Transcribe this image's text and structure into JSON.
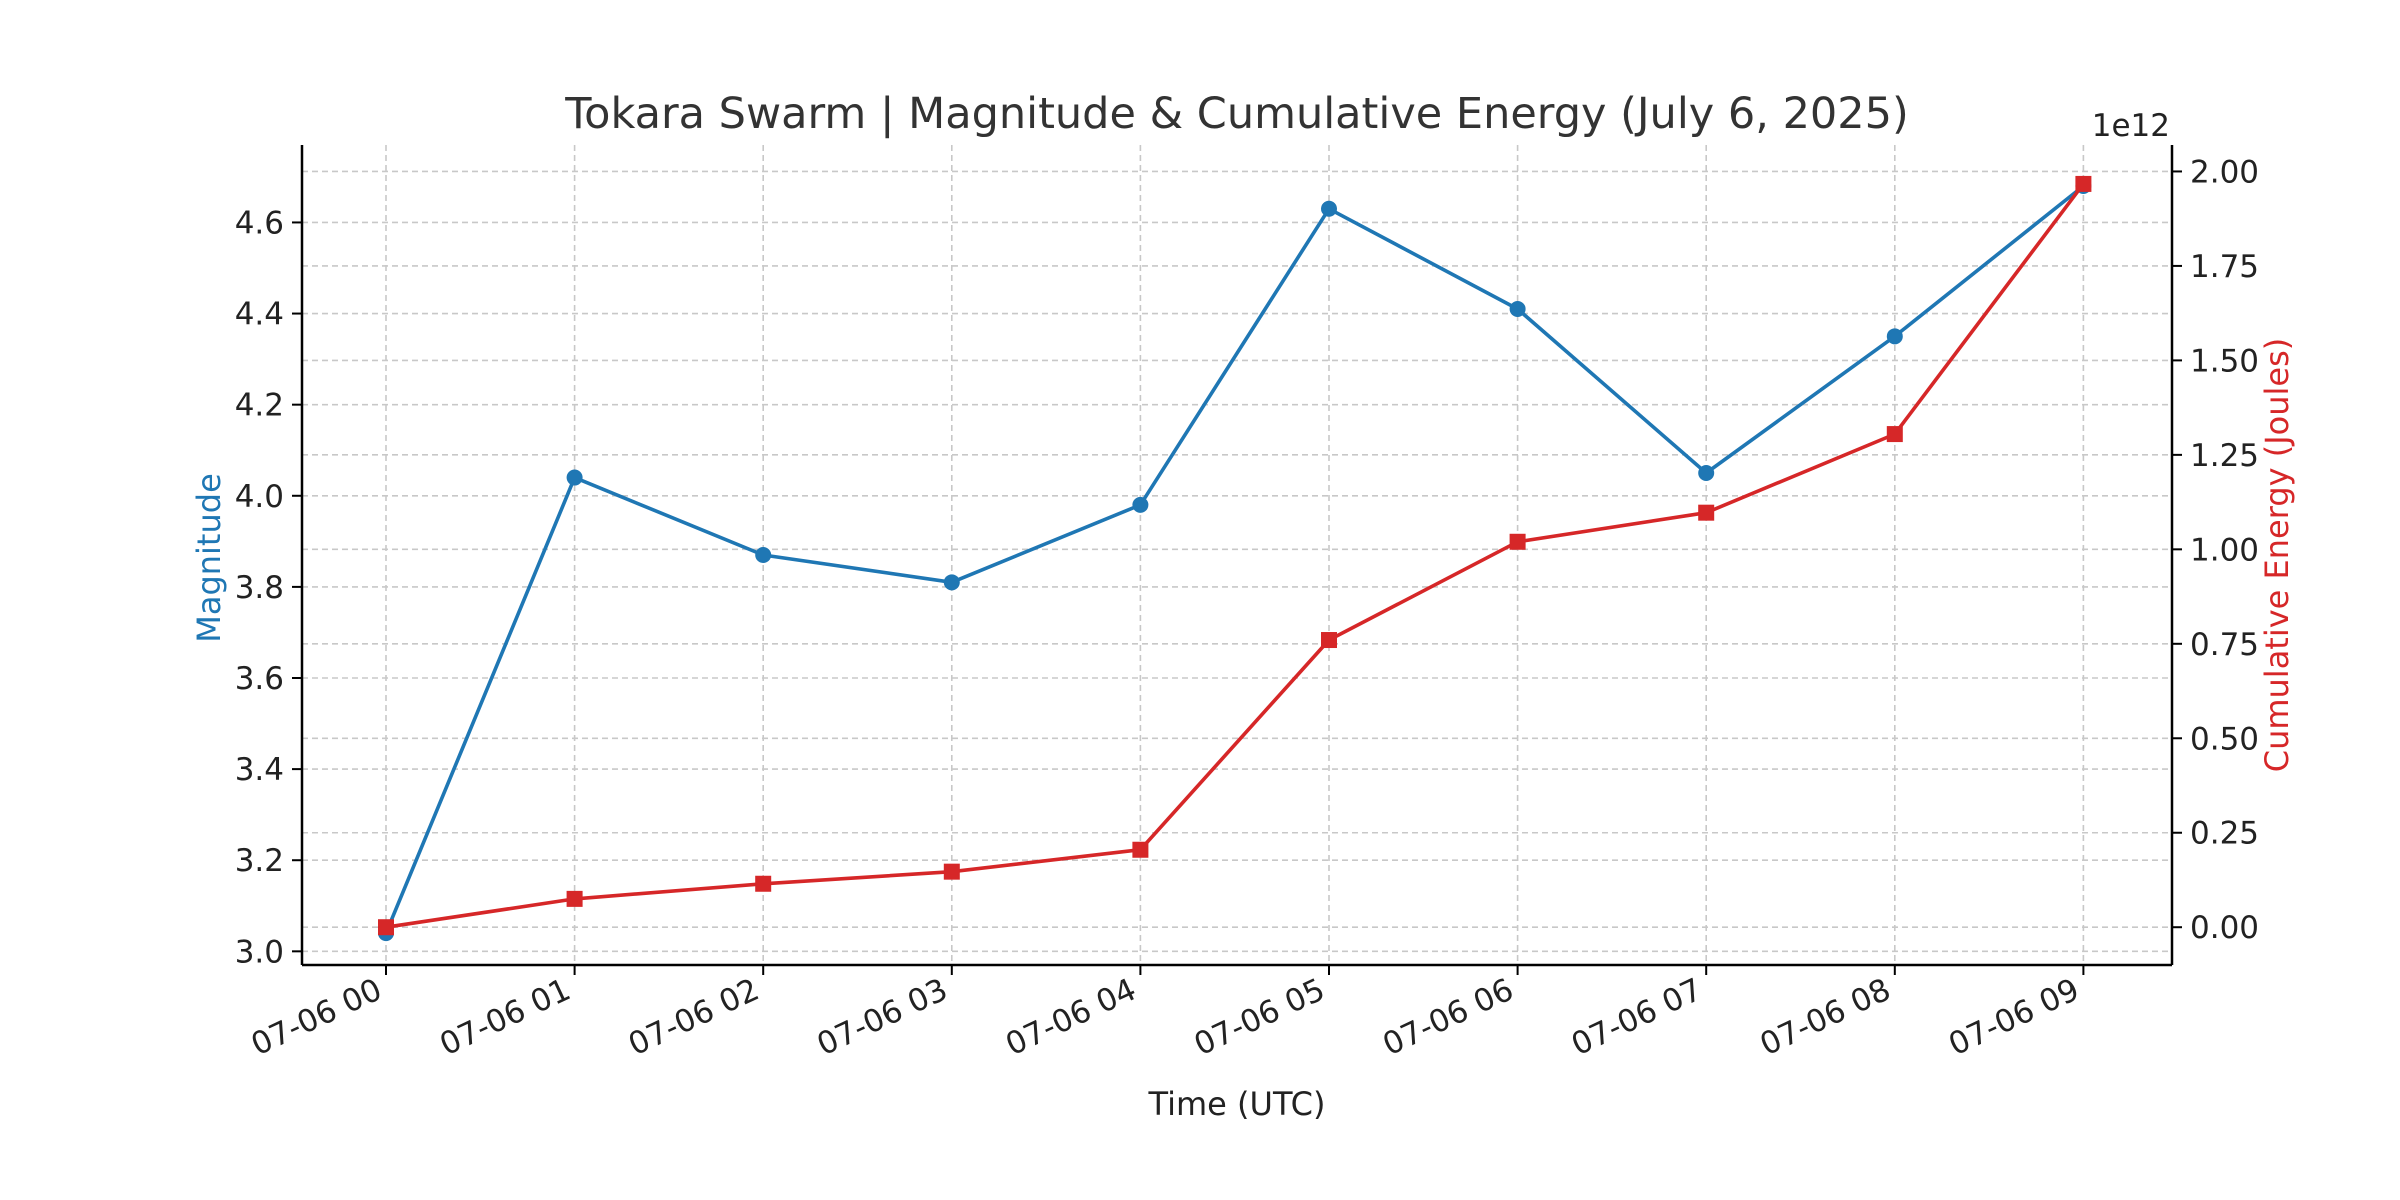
{
  "chart_data": {
    "type": "line",
    "title": "Tokara Swarm | Magnitude & Cumulative Energy (July 6, 2025)",
    "xlabel": "Time (UTC)",
    "ylabel_left": "Magnitude",
    "ylabel_right": "Cumulative Energy (Joules)",
    "right_axis_multiplier": "1e12",
    "categories": [
      "07-06 00",
      "07-06 01",
      "07-06 02",
      "07-06 03",
      "07-06 04",
      "07-06 05",
      "07-06 06",
      "07-06 07",
      "07-06 08",
      "07-06 09"
    ],
    "left_ylim": [
      2.97,
      4.77
    ],
    "left_ticks": [
      "3.0",
      "3.2",
      "3.4",
      "3.6",
      "3.8",
      "4.0",
      "4.2",
      "4.4",
      "4.6"
    ],
    "right_ylim": [
      -0.1,
      2.07
    ],
    "right_ticks": [
      "0.00",
      "0.25",
      "0.50",
      "0.75",
      "1.00",
      "1.25",
      "1.50",
      "1.75",
      "2.00"
    ],
    "grid": true,
    "series": [
      {
        "axis": "left",
        "marker": "circle",
        "color": "#1f77b4",
        "values": [
          3.04,
          4.04,
          3.87,
          3.81,
          3.98,
          4.63,
          4.41,
          4.05,
          4.35,
          4.68
        ]
      },
      {
        "axis": "right",
        "marker": "square",
        "color": "#d62728",
        "values": [
          0.0,
          0.075,
          0.115,
          0.147,
          0.205,
          0.76,
          1.02,
          1.097,
          1.305,
          1.967
        ]
      }
    ]
  }
}
